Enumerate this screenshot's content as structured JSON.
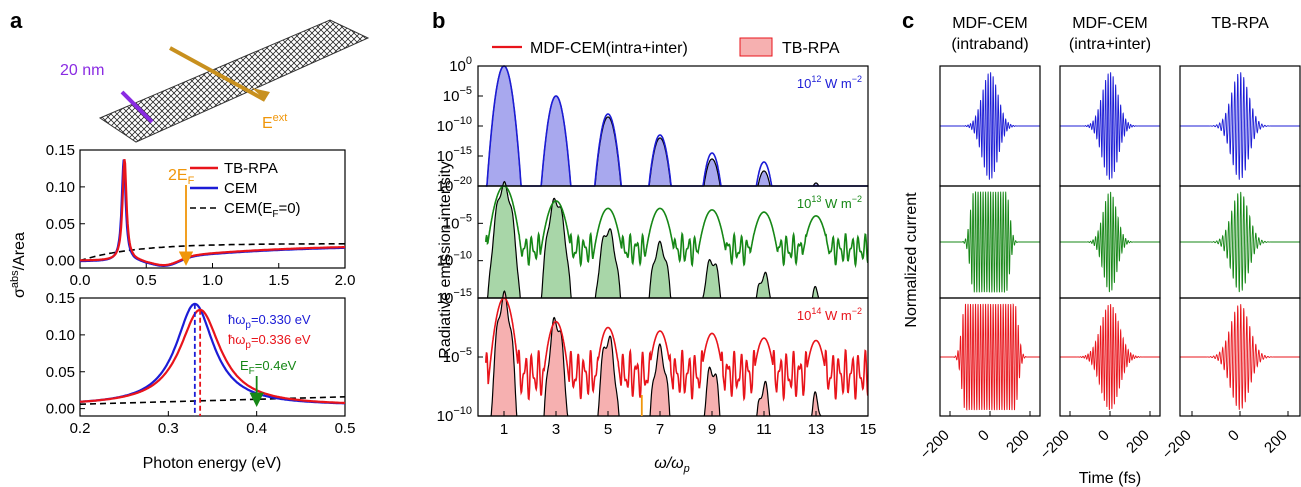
{
  "figure": {
    "panel_letters": [
      "a",
      "b",
      "c"
    ]
  },
  "panel_a": {
    "inset": {
      "width_label": "20 nm",
      "field_label": "E",
      "field_sup": "ext"
    },
    "ylabel_main": "σ",
    "ylabel_sup": "abs",
    "ylabel_rest": "/Area",
    "xlabel": "Photon energy (eV)",
    "top": {
      "annotation": "2E",
      "annotation_sub": "F",
      "legend": [
        "TB-RPA",
        "CEM",
        "CEM(E",
        "F",
        "=0)"
      ]
    },
    "bottom": {
      "ann_blue": "ħω",
      "ann_blue_sub": "p",
      "ann_blue_val": "=0.330 eV",
      "ann_red": "ħω",
      "ann_red_sub": "p",
      "ann_red_val": "=0.336 eV",
      "ann_green": "E",
      "ann_green_sub": "F",
      "ann_green_val": "=0.4eV"
    }
  },
  "panel_b": {
    "legend_line": "MDF-CEM(intra+inter)",
    "legend_fill": "TB-RPA",
    "ylabel": "Radiative emission intensity",
    "xlabel": "ω/ω",
    "xlabel_sub": "p",
    "intensity_labels": [
      {
        "base": "10",
        "sup": "12",
        "unit": " W m",
        "unit_sup": "−2"
      },
      {
        "base": "10",
        "sup": "13",
        "unit": " W m",
        "unit_sup": "−2"
      },
      {
        "base": "10",
        "sup": "14",
        "unit": " W m",
        "unit_sup": "−2"
      }
    ]
  },
  "panel_c": {
    "col_titles": [
      [
        "MDF-CEM",
        "(intraband)"
      ],
      [
        "MDF-CEM",
        "(intra+inter)"
      ],
      [
        "TB-RPA",
        ""
      ]
    ],
    "ylabel": "Normalized current",
    "xlabel": "Time (fs)",
    "xticks": [
      "−200",
      "0",
      "200"
    ]
  },
  "colors": {
    "red": "#e8141b",
    "blue": "#1c1cd6",
    "green": "#168716",
    "black": "#000000",
    "orange": "#f0960a",
    "purple": "#8a2be2",
    "gold": "#c8901e"
  },
  "chart_data": [
    {
      "type": "line",
      "name": "a-top",
      "xlim": [
        0,
        2.0
      ],
      "ylim": [
        -0.01,
        0.15
      ],
      "xticks": [
        0.0,
        0.5,
        1.0,
        1.5,
        2.0
      ],
      "yticks": [
        0.0,
        0.05,
        0.1,
        0.15
      ],
      "series": [
        {
          "name": "TB-RPA",
          "peak_x": 0.336,
          "peak_y": 0.14
        },
        {
          "name": "CEM",
          "peak_x": 0.33,
          "peak_y": 0.14
        },
        {
          "name": "CEM(EF=0)",
          "x": [
            0,
            0.5,
            1.0,
            1.5,
            2.0
          ],
          "y": [
            0.0,
            0.016,
            0.02,
            0.022,
            0.023
          ]
        }
      ],
      "marker_x": 0.8
    },
    {
      "type": "line",
      "name": "a-bottom",
      "xlim": [
        0.2,
        0.5
      ],
      "ylim": [
        -0.01,
        0.15
      ],
      "xticks": [
        0.2,
        0.3,
        0.4,
        0.5
      ],
      "yticks": [
        0.0,
        0.05,
        0.1,
        0.15
      ],
      "series": [
        {
          "name": "CEM",
          "peak_x": 0.33,
          "peak_y": 0.14
        },
        {
          "name": "TB-RPA",
          "peak_x": 0.336,
          "peak_y": 0.132
        },
        {
          "name": "CEM(EF=0)",
          "x": [
            0.2,
            0.5
          ],
          "y": [
            0.006,
            0.016
          ]
        }
      ],
      "marker_x": 0.4
    },
    {
      "type": "line",
      "name": "b",
      "xlim": [
        0,
        15
      ],
      "xticks": [
        1,
        3,
        5,
        7,
        9,
        11,
        13,
        15
      ],
      "panels": [
        {
          "intensity": "1e12",
          "yticks": [
            "10^0",
            "10^-5",
            "10^-10",
            "10^-15",
            "10^-20"
          ],
          "log_range": [
            -20,
            0
          ]
        },
        {
          "intensity": "1e13",
          "yticks": [
            "10^-5",
            "10^-10",
            "10^-15"
          ],
          "log_range": [
            -15,
            0
          ]
        },
        {
          "intensity": "1e14",
          "yticks": [
            "10^-5",
            "10^-10"
          ],
          "log_range": [
            -10,
            0
          ]
        }
      ],
      "harmonics": [
        1,
        3,
        5,
        7,
        9,
        11,
        13
      ]
    },
    {
      "type": "line",
      "name": "c",
      "xlim": [
        -250,
        250
      ],
      "xticks": [
        -200,
        0,
        200
      ]
    }
  ]
}
